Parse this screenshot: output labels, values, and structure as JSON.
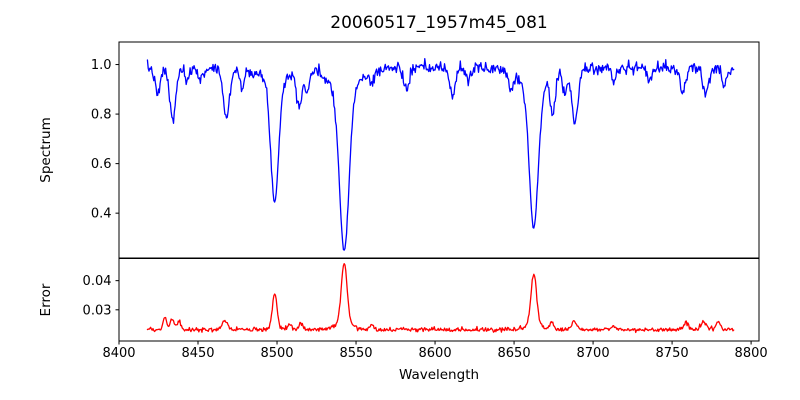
{
  "figure": {
    "background": "#ffffff",
    "spine_color": "#000000",
    "text_color": "#000000"
  },
  "chart_data": {
    "type": "line",
    "title": "20060517_1957m45_081",
    "xlabel": "Wavelength",
    "x_range": [
      8400,
      8805
    ],
    "x_ticks": [
      8400,
      8450,
      8500,
      8550,
      8600,
      8650,
      8700,
      8750,
      8800
    ],
    "x_tick_labels": [
      "8400",
      "8450",
      "8500",
      "8550",
      "8600",
      "8650",
      "8700",
      "8750",
      "8800"
    ],
    "data_x_start": 8418,
    "data_x_end": 8789,
    "sample_step": 0.5,
    "grid": false,
    "legend": "none",
    "panels": [
      {
        "name": "spectrum",
        "ylabel": "Spectrum",
        "ylim": [
          0.219,
          1.091
        ],
        "y_ticks": [
          1.0,
          0.8,
          0.6,
          0.4
        ],
        "y_tick_labels": [
          "1.0",
          "0.8",
          "0.6",
          "0.4"
        ],
        "color": "#0000ff",
        "continuum": 0.985,
        "noise_sigma": 0.012,
        "absorption_lines": [
          {
            "center": 8424.5,
            "depth": 0.11,
            "width": 1.6
          },
          {
            "center": 8434.0,
            "depth": 0.21,
            "width": 1.9
          },
          {
            "center": 8443.0,
            "depth": 0.06,
            "width": 1.4
          },
          {
            "center": 8452.0,
            "depth": 0.05,
            "width": 1.4
          },
          {
            "center": 8468.0,
            "depth": 0.2,
            "width": 2.0
          },
          {
            "center": 8478.0,
            "depth": 0.08,
            "width": 1.4
          },
          {
            "center": 8498.5,
            "depth": 0.48,
            "width": 2.4,
            "wing": true
          },
          {
            "center": 8514.0,
            "depth": 0.14,
            "width": 1.7
          },
          {
            "center": 8519.0,
            "depth": 0.09,
            "width": 1.4
          },
          {
            "center": 8542.5,
            "depth": 0.65,
            "width": 3.0,
            "wing": true
          },
          {
            "center": 8560.0,
            "depth": 0.05,
            "width": 1.4
          },
          {
            "center": 8582.0,
            "depth": 0.09,
            "width": 1.6
          },
          {
            "center": 8611.0,
            "depth": 0.11,
            "width": 1.7
          },
          {
            "center": 8621.0,
            "depth": 0.05,
            "width": 1.4
          },
          {
            "center": 8648.0,
            "depth": 0.06,
            "width": 1.5
          },
          {
            "center": 8662.5,
            "depth": 0.57,
            "width": 2.8,
            "wing": true
          },
          {
            "center": 8674.5,
            "depth": 0.16,
            "width": 1.6
          },
          {
            "center": 8682.0,
            "depth": 0.1,
            "width": 1.4
          },
          {
            "center": 8688.5,
            "depth": 0.22,
            "width": 2.0
          },
          {
            "center": 8713.0,
            "depth": 0.05,
            "width": 1.4
          },
          {
            "center": 8736.0,
            "depth": 0.05,
            "width": 1.4
          },
          {
            "center": 8757.0,
            "depth": 0.1,
            "width": 1.8
          },
          {
            "center": 8771.0,
            "depth": 0.1,
            "width": 1.6
          },
          {
            "center": 8783.0,
            "depth": 0.07,
            "width": 1.4
          }
        ]
      },
      {
        "name": "error",
        "ylabel": "Error",
        "ylim": [
          0.0193,
          0.0476
        ],
        "y_ticks": [
          0.04,
          0.03
        ],
        "y_tick_labels": [
          "0.04",
          "0.03"
        ],
        "color": "#ff0000",
        "baseline": 0.0232,
        "noise_sigma": 0.00035,
        "peaks": [
          {
            "center": 8429.0,
            "height": 0.0042,
            "width": 1.2
          },
          {
            "center": 8433.5,
            "height": 0.0035,
            "width": 1.2
          },
          {
            "center": 8438.0,
            "height": 0.0028,
            "width": 1.2
          },
          {
            "center": 8467.0,
            "height": 0.0028,
            "width": 1.6
          },
          {
            "center": 8498.5,
            "height": 0.0123,
            "width": 1.5
          },
          {
            "center": 8508.0,
            "height": 0.0018,
            "width": 1.3
          },
          {
            "center": 8515.0,
            "height": 0.0022,
            "width": 1.4
          },
          {
            "center": 8542.5,
            "height": 0.0205,
            "width": 1.8,
            "wing": true
          },
          {
            "center": 8560.0,
            "height": 0.002,
            "width": 1.3
          },
          {
            "center": 8662.5,
            "height": 0.0172,
            "width": 1.7,
            "wing": true
          },
          {
            "center": 8674.0,
            "height": 0.0024,
            "width": 1.3
          },
          {
            "center": 8688.0,
            "height": 0.003,
            "width": 1.6
          },
          {
            "center": 8713.0,
            "height": 0.0014,
            "width": 1.3
          },
          {
            "center": 8759.0,
            "height": 0.0026,
            "width": 1.6
          },
          {
            "center": 8770.0,
            "height": 0.003,
            "width": 1.5
          },
          {
            "center": 8779.0,
            "height": 0.0026,
            "width": 1.4
          }
        ]
      }
    ]
  }
}
